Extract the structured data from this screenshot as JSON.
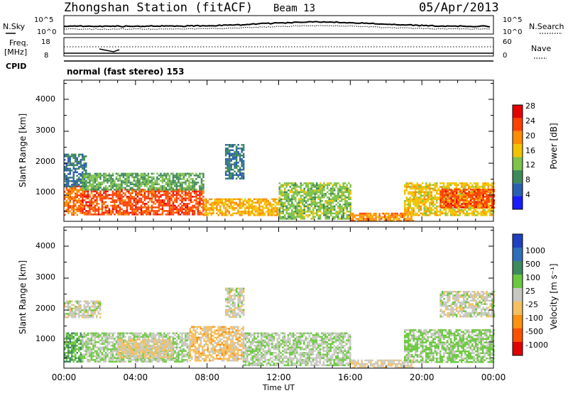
{
  "header": {
    "station": "Zhongshan Station (fitACF)",
    "beam": "Beam 13",
    "date": "05/Apr/2013"
  },
  "noise_panel": {
    "left_label": "N.Sky",
    "right_label": "N.Search",
    "left_ticks": [
      "10^5",
      "10^0"
    ],
    "right_ticks": [
      "10^5",
      "10^0"
    ]
  },
  "freq_panel": {
    "left_label_1": "Freq.",
    "left_label_2": "[MHz]",
    "left_ticks": [
      "18",
      "8"
    ],
    "right_label": "Nave",
    "right_ticks": [
      "60",
      "0"
    ]
  },
  "cpid": {
    "label": "CPID",
    "value": "normal (fast stereo) 153"
  },
  "x_axis": {
    "ticks": [
      "00:00",
      "04:00",
      "08:00",
      "12:00",
      "16:00",
      "20:00",
      "00:00"
    ],
    "label": "Time UT"
  },
  "power_panel": {
    "ylabel": "Slant Range [km]",
    "yticks": [
      "1000",
      "2000",
      "3000",
      "4000"
    ],
    "colorbar_label": "Power [dB]",
    "colorbar_ticks": [
      "4",
      "8",
      "12",
      "16",
      "20",
      "24",
      "28"
    ],
    "colors": [
      "#1a1aff",
      "#2b5fb0",
      "#3f8a5a",
      "#7fc24a",
      "#f2c400",
      "#ff8c00",
      "#ff4000",
      "#e60000"
    ]
  },
  "velocity_panel": {
    "ylabel": "Slant Range [km]",
    "yticks": [
      "1000",
      "2000",
      "3000",
      "4000"
    ],
    "colorbar_label": "Velocity [m s⁻¹]",
    "colorbar_ticks": [
      "1000",
      "500",
      "100",
      "25",
      "-25",
      "-100",
      "-500",
      "-1000"
    ],
    "colors": [
      "#2040c0",
      "#2f6fb8",
      "#3d8a5e",
      "#6cc840",
      "#c8c8c0",
      "#f5c060",
      "#ff9010",
      "#ff5000",
      "#e00000"
    ]
  },
  "chart_data": [
    {
      "type": "heatmap",
      "title": "Power",
      "xlabel": "Time UT",
      "ylabel": "Slant Range [km]",
      "xlim": [
        0,
        24
      ],
      "ylim": [
        180,
        4600
      ],
      "colorbar": {
        "label": "Power [dB]",
        "range": [
          0,
          32
        ]
      },
      "regions": [
        {
          "t0": 0.0,
          "t1": 1.0,
          "r0": 400,
          "r1": 1300,
          "value": 24
        },
        {
          "t0": 0.0,
          "t1": 1.2,
          "r0": 1300,
          "r1": 2300,
          "value": 8
        },
        {
          "t0": 1.0,
          "t1": 7.8,
          "r0": 400,
          "r1": 1200,
          "value": 26
        },
        {
          "t0": 1.0,
          "t1": 7.8,
          "r0": 1200,
          "r1": 1700,
          "value": 12
        },
        {
          "t0": 7.8,
          "t1": 12.0,
          "r0": 350,
          "r1": 900,
          "value": 20
        },
        {
          "t0": 9.0,
          "t1": 10.0,
          "r0": 1500,
          "r1": 2600,
          "value": 8
        },
        {
          "t0": 12.0,
          "t1": 16.0,
          "r0": 250,
          "r1": 1400,
          "value": 14
        },
        {
          "t0": 16.0,
          "t1": 19.5,
          "r0": 180,
          "r1": 450,
          "value": 22
        },
        {
          "t0": 19.0,
          "t1": 24.0,
          "r0": 400,
          "r1": 1400,
          "value": 18
        },
        {
          "t0": 21.0,
          "t1": 24.0,
          "r0": 600,
          "r1": 1200,
          "value": 26
        }
      ]
    },
    {
      "type": "heatmap",
      "title": "Velocity",
      "xlabel": "Time UT",
      "ylabel": "Slant Range [km]",
      "xlim": [
        0,
        24
      ],
      "ylim": [
        180,
        4600
      ],
      "colorbar": {
        "label": "Velocity [m s⁻¹]",
        "range": [
          -1000,
          1000
        ]
      },
      "regions": [
        {
          "t0": 0.0,
          "t1": 1.0,
          "r0": 400,
          "r1": 1300,
          "value": 300
        },
        {
          "t0": 0.0,
          "t1": 2.0,
          "r0": 1800,
          "r1": 2300,
          "value": 0
        },
        {
          "t0": 1.0,
          "t1": 7.0,
          "r0": 400,
          "r1": 1300,
          "value": 100
        },
        {
          "t0": 3.0,
          "t1": 6.0,
          "r0": 500,
          "r1": 1100,
          "value": -150
        },
        {
          "t0": 7.0,
          "t1": 10.0,
          "r0": 400,
          "r1": 1500,
          "value": -200
        },
        {
          "t0": 9.0,
          "t1": 10.0,
          "r0": 1800,
          "r1": 2700,
          "value": 0
        },
        {
          "t0": 10.0,
          "t1": 16.0,
          "r0": 250,
          "r1": 1300,
          "value": 80
        },
        {
          "t0": 16.0,
          "t1": 19.5,
          "r0": 180,
          "r1": 450,
          "value": -80
        },
        {
          "t0": 19.0,
          "t1": 24.0,
          "r0": 400,
          "r1": 1400,
          "value": 150
        },
        {
          "t0": 21.0,
          "t1": 24.0,
          "r0": 1800,
          "r1": 2600,
          "value": 0
        }
      ]
    }
  ]
}
